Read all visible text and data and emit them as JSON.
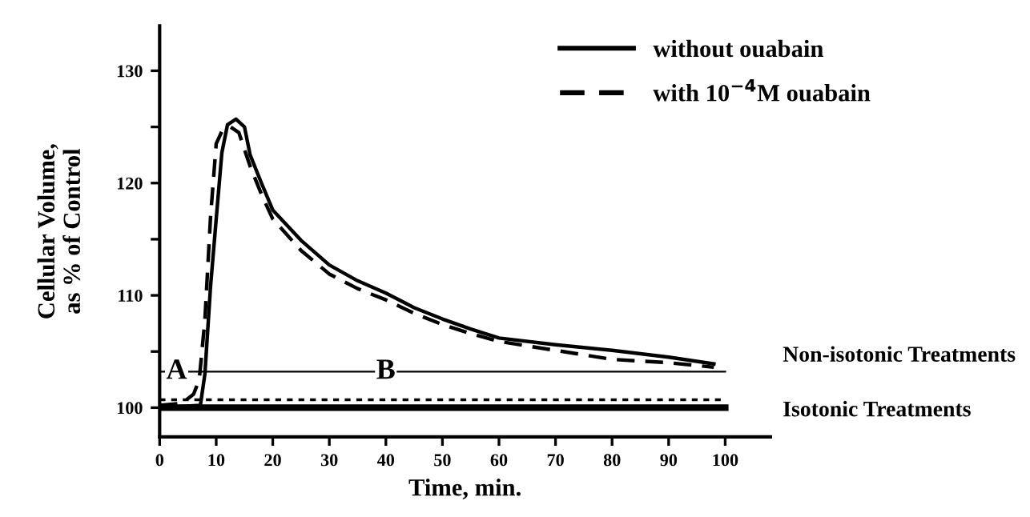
{
  "chart_data": {
    "type": "line",
    "xlabel": "Time, min.",
    "ylabel": "Cellular Volume,\nas % of Control",
    "xlim": [
      0,
      108
    ],
    "ylim": [
      97.4,
      134
    ],
    "xticks": [
      0,
      10,
      20,
      30,
      40,
      50,
      60,
      70,
      80,
      90,
      100
    ],
    "yticks": [
      100,
      {
        "value": 105,
        "label": null
      },
      110,
      {
        "value": 115,
        "label": null
      },
      120,
      {
        "value": 125,
        "label": null
      },
      130
    ],
    "grid": false,
    "legend": "top right",
    "marker": "none",
    "series": [
      {
        "name": "without ouabain",
        "color": "#000000",
        "line_style": "solid",
        "x": [
          0,
          7.2,
          8,
          9,
          10,
          11,
          12,
          13.5,
          15,
          16,
          18,
          20,
          25,
          30,
          35,
          40,
          45,
          50,
          55,
          60,
          70,
          80,
          90,
          98
        ],
        "values": [
          100,
          100.2,
          103,
          110.8,
          116.8,
          122.7,
          125.2,
          125.7,
          125,
          122.5,
          120,
          117.6,
          114.9,
          112.7,
          111.3,
          110.2,
          108.9,
          107.9,
          107,
          106.2,
          105.6,
          105.1,
          104.5,
          103.9
        ]
      },
      {
        "name": "with 10$^{−4}$M ouabain",
        "color": "#000000",
        "line_style": "dashed",
        "x": [
          0,
          4,
          6,
          7,
          8,
          9,
          10,
          11,
          12.5,
          14,
          16,
          18,
          20,
          25,
          30,
          35,
          40,
          45,
          50,
          55,
          60,
          70,
          80,
          90,
          98
        ],
        "values": [
          100.2,
          100.4,
          101.2,
          102.5,
          107.8,
          117,
          123.5,
          124.6,
          125,
          124.5,
          121.5,
          119,
          116.8,
          114,
          111.9,
          110.6,
          109.6,
          108.4,
          107.4,
          106.6,
          105.9,
          105.1,
          104.3,
          104,
          103.6
        ]
      }
    ],
    "ref_lines": [
      {
        "axis": "y",
        "value": 100,
        "color": "#000000",
        "line_style": "solid"
      },
      {
        "axis": "y",
        "value": 103.2,
        "label": "Non-isotonic Treatments",
        "color": "#000000",
        "line_style": "solid"
      },
      {
        "axis": "y",
        "value": 100.7,
        "label": "Isotonic Treatments",
        "color": "#000000",
        "line_style": "dotted"
      }
    ],
    "annotations": [
      {
        "text": "A",
        "x": 3,
        "y": 103.2
      },
      {
        "text": "B",
        "x": 40,
        "y": 103.2
      }
    ]
  }
}
